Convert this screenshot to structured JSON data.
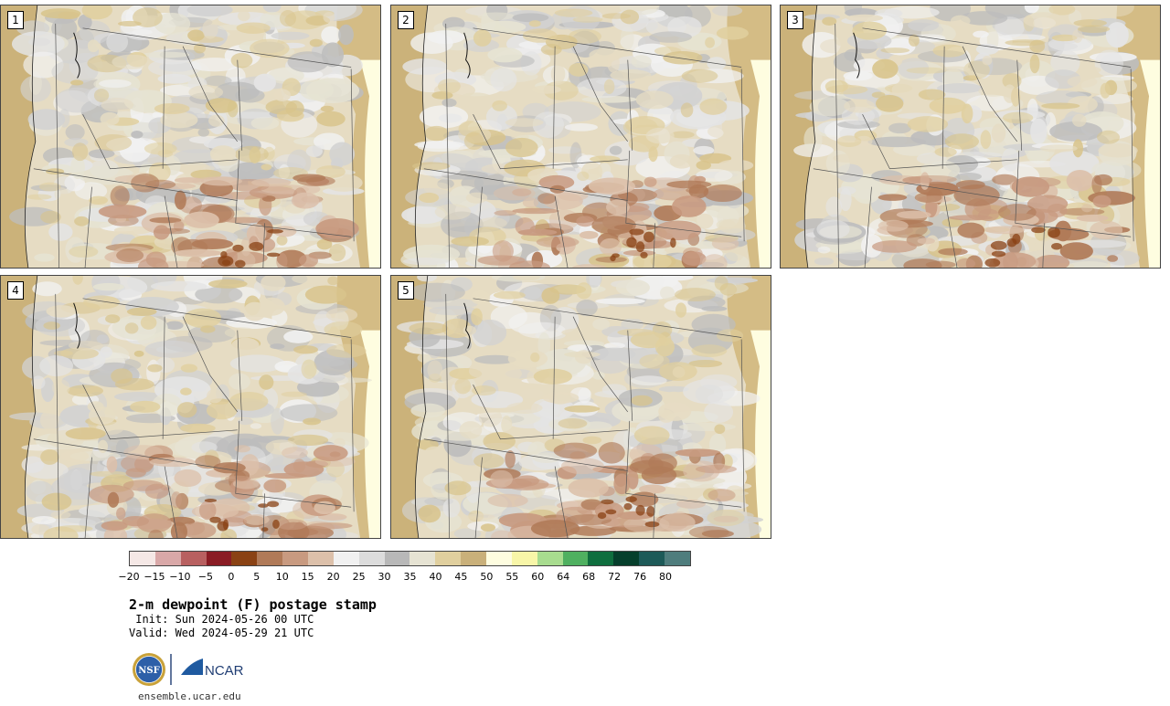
{
  "panels": [
    {
      "label": "1"
    },
    {
      "label": "2"
    },
    {
      "label": "3"
    },
    {
      "label": "4"
    },
    {
      "label": "5"
    }
  ],
  "colorbar": {
    "colors": [
      "#f5e8e6",
      "#d9a8a8",
      "#b86060",
      "#8a1c24",
      "#8a4214",
      "#b07a58",
      "#c89a80",
      "#dcc0aa",
      "#f1f1f1",
      "#dcdcdc",
      "#b8b8b8",
      "#e6e3d3",
      "#e0cf9e",
      "#c9b07a",
      "#fefde0",
      "#f8f6a8",
      "#a8dc8f",
      "#4fb060",
      "#0f6e3e",
      "#063f2c",
      "#1d5a58",
      "#4f7d7d"
    ],
    "tick_labels": [
      "−20",
      "−15",
      "−10",
      "−5",
      "0",
      "5",
      "10",
      "15",
      "20",
      "25",
      "30",
      "35",
      "40",
      "45",
      "50",
      "55",
      "60",
      "64",
      "68",
      "72",
      "76",
      "80"
    ]
  },
  "title": "2-m dewpoint (F) postage stamp",
  "init": " Init: Sun 2024-05-26 00 UTC",
  "valid": "Valid: Wed 2024-05-29 21 UTC",
  "logo": {
    "nsf_text": "NSF",
    "ncar_text": "NCAR"
  },
  "url": "ensemble.ucar.edu"
}
